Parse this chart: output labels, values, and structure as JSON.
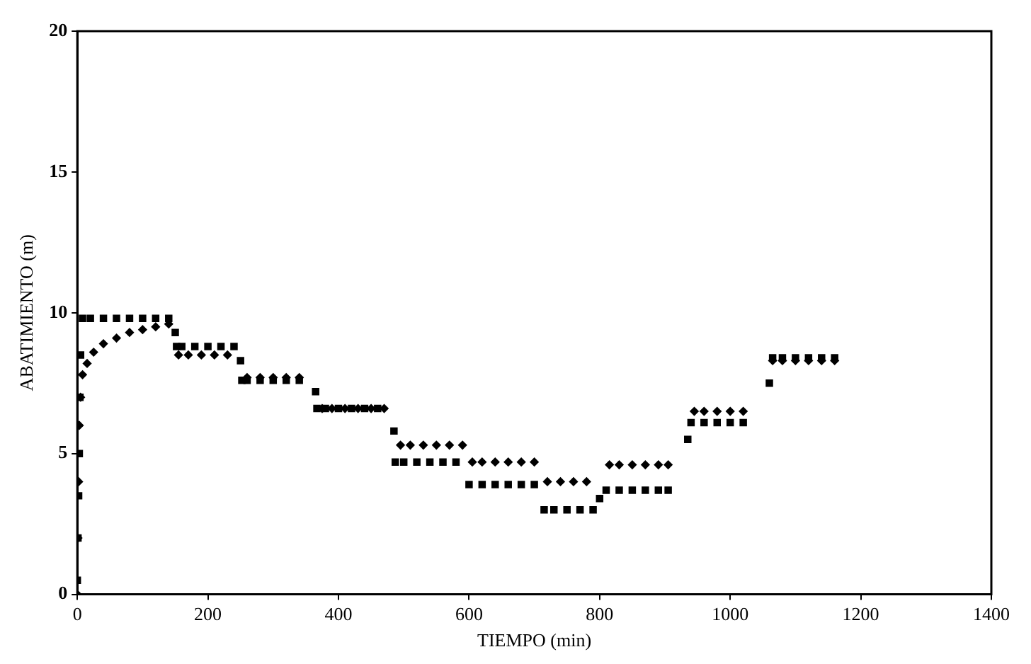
{
  "chart_data": {
    "type": "scatter",
    "xlabel": "TIEMPO (min)",
    "ylabel": "ABATIMIENTO (m)",
    "xlim": [
      0,
      1400
    ],
    "xticks": [
      0,
      200,
      400,
      600,
      800,
      1000,
      1200,
      1400
    ],
    "ylim": [
      0,
      20
    ],
    "yticks": [
      0,
      5,
      10,
      15,
      20
    ],
    "grid": false,
    "legend": false,
    "series": [
      {
        "color": "#000000",
        "marker": "square",
        "x": [
          0,
          1,
          2,
          3,
          4,
          5,
          8,
          20,
          40,
          60,
          80,
          100,
          120,
          140,
          150,
          152,
          160,
          180,
          200,
          220,
          240,
          250,
          252,
          260,
          280,
          300,
          320,
          340,
          365,
          367,
          380,
          400,
          420,
          440,
          460,
          485,
          487,
          500,
          520,
          540,
          560,
          580,
          600,
          620,
          640,
          660,
          680,
          700,
          715,
          730,
          750,
          770,
          790,
          800,
          810,
          830,
          850,
          870,
          890,
          905,
          935,
          940,
          960,
          980,
          1000,
          1020,
          1060,
          1065,
          1080,
          1100,
          1120,
          1140,
          1160
        ],
        "values": [
          0.5,
          2,
          3.5,
          5,
          7,
          8.5,
          9.8,
          9.8,
          9.8,
          9.8,
          9.8,
          9.8,
          9.8,
          9.8,
          9.3,
          8.8,
          8.8,
          8.8,
          8.8,
          8.8,
          8.8,
          8.3,
          7.6,
          7.6,
          7.6,
          7.6,
          7.6,
          7.6,
          7.2,
          6.6,
          6.6,
          6.6,
          6.6,
          6.6,
          6.6,
          5.8,
          4.7,
          4.7,
          4.7,
          4.7,
          4.7,
          4.7,
          3.9,
          3.9,
          3.9,
          3.9,
          3.9,
          3.9,
          3.0,
          3.0,
          3.0,
          3.0,
          3.0,
          3.4,
          3.7,
          3.7,
          3.7,
          3.7,
          3.7,
          3.7,
          5.5,
          6.1,
          6.1,
          6.1,
          6.1,
          6.1,
          7.5,
          8.4,
          8.4,
          8.4,
          8.4,
          8.4,
          8.4
        ]
      },
      {
        "color": "#000000",
        "marker": "diamond",
        "x": [
          0,
          1,
          2,
          3,
          5,
          8,
          15,
          25,
          40,
          60,
          80,
          100,
          120,
          140,
          155,
          170,
          190,
          210,
          230,
          260,
          280,
          300,
          320,
          340,
          375,
          390,
          410,
          430,
          450,
          470,
          495,
          510,
          530,
          550,
          570,
          590,
          605,
          620,
          640,
          660,
          680,
          700,
          720,
          740,
          760,
          780,
          815,
          830,
          850,
          870,
          890,
          905,
          945,
          960,
          980,
          1000,
          1020,
          1065,
          1080,
          1100,
          1120,
          1140,
          1160
        ],
        "values": [
          0,
          2,
          4,
          6,
          7,
          7.8,
          8.2,
          8.6,
          8.9,
          9.1,
          9.3,
          9.4,
          9.5,
          9.6,
          8.5,
          8.5,
          8.5,
          8.5,
          8.5,
          7.7,
          7.7,
          7.7,
          7.7,
          7.7,
          6.6,
          6.6,
          6.6,
          6.6,
          6.6,
          6.6,
          5.3,
          5.3,
          5.3,
          5.3,
          5.3,
          5.3,
          4.7,
          4.7,
          4.7,
          4.7,
          4.7,
          4.7,
          4.0,
          4.0,
          4.0,
          4.0,
          4.6,
          4.6,
          4.6,
          4.6,
          4.6,
          4.6,
          6.5,
          6.5,
          6.5,
          6.5,
          6.5,
          8.3,
          8.3,
          8.3,
          8.3,
          8.3,
          8.3
        ]
      }
    ]
  }
}
